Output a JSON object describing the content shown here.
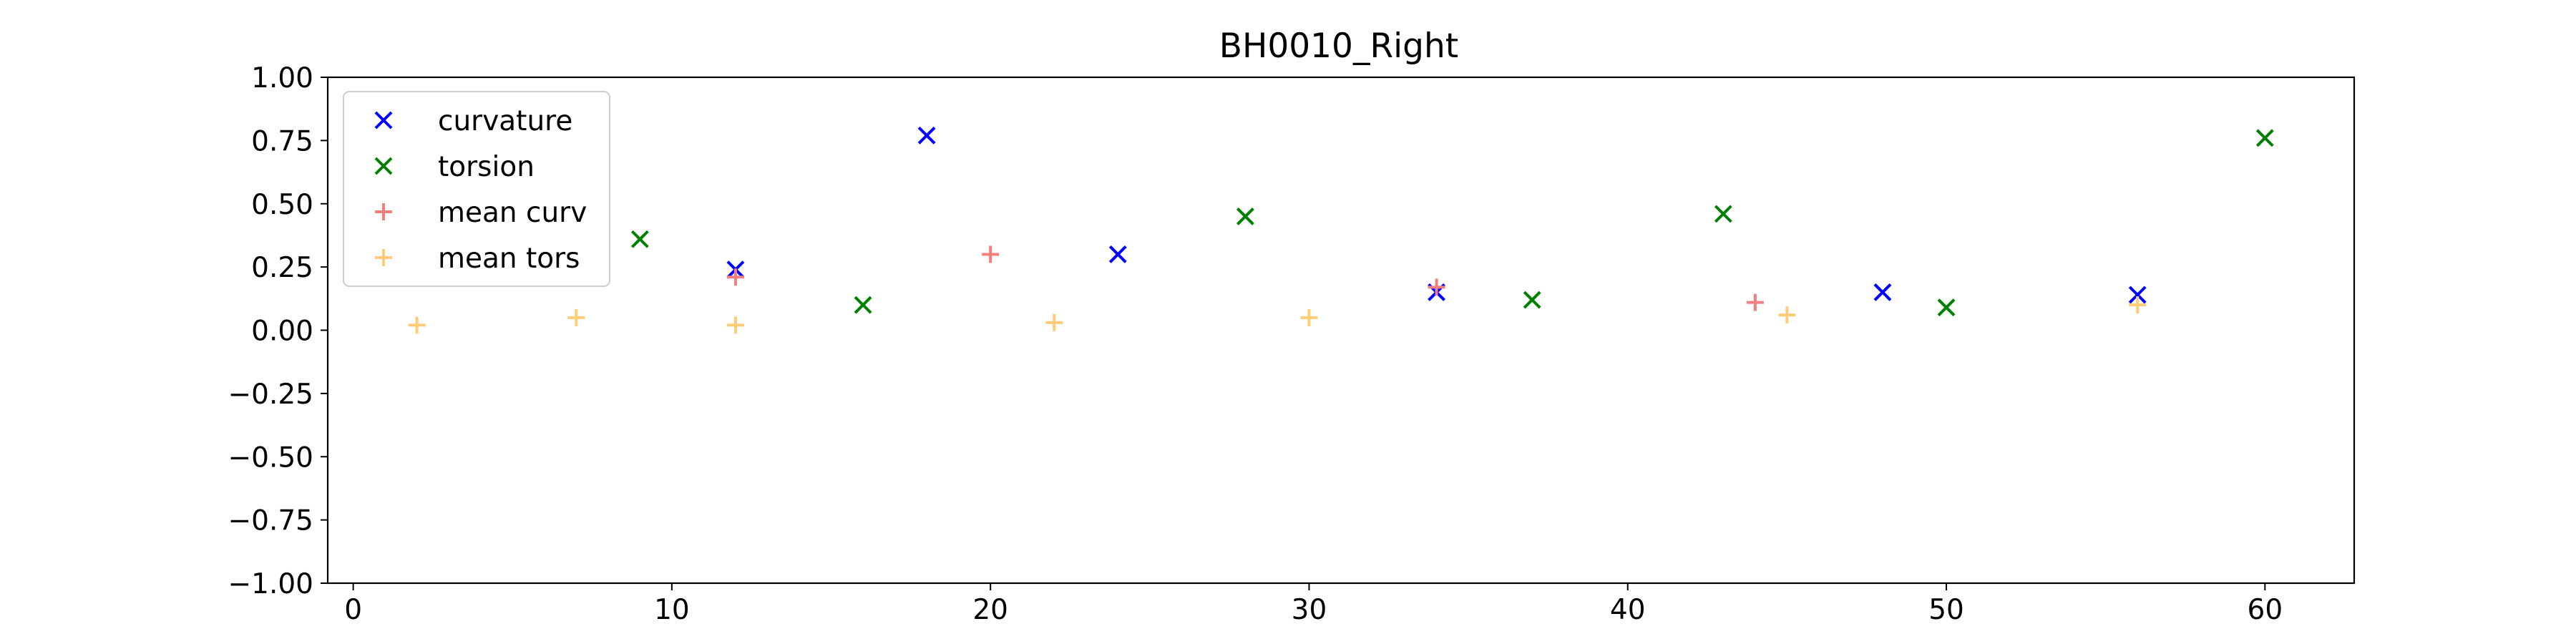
{
  "chart_data": {
    "type": "scatter",
    "title": "BH0010_Right",
    "xlabel": "",
    "ylabel": "",
    "xlim": [
      -0.8,
      62.8
    ],
    "ylim": [
      -1.0,
      1.0
    ],
    "xticks": [
      0,
      10,
      20,
      30,
      40,
      50,
      60
    ],
    "yticks": [
      -1.0,
      -0.75,
      -0.5,
      -0.25,
      0.0,
      0.25,
      0.5,
      0.75,
      1.0
    ],
    "xtick_labels": [
      "0",
      "10",
      "20",
      "30",
      "40",
      "50",
      "60"
    ],
    "ytick_labels": [
      "−1.00",
      "−0.75",
      "−0.50",
      "−0.25",
      "0.00",
      "0.25",
      "0.50",
      "0.75",
      "1.00"
    ],
    "grid": false,
    "legend_position": "upper-left",
    "series": [
      {
        "name": "curvature",
        "marker": "x",
        "color": "#0000ff",
        "x": [
          12,
          18,
          24,
          34,
          48,
          56
        ],
        "y": [
          0.24,
          0.77,
          0.3,
          0.15,
          0.15,
          0.14
        ]
      },
      {
        "name": "torsion",
        "marker": "x",
        "color": "#008000",
        "x": [
          9,
          16,
          28,
          37,
          43,
          50,
          60
        ],
        "y": [
          0.36,
          0.1,
          0.45,
          0.12,
          0.46,
          0.09,
          0.76
        ]
      },
      {
        "name": "mean curv",
        "marker": "+",
        "color": "#f08080",
        "x": [
          12,
          20,
          34,
          44
        ],
        "y": [
          0.21,
          0.3,
          0.17,
          0.11
        ]
      },
      {
        "name": "mean tors",
        "marker": "+",
        "color": "#ffcc77",
        "x": [
          2,
          7,
          12,
          22,
          30,
          45,
          56
        ],
        "y": [
          0.02,
          0.05,
          0.02,
          0.03,
          0.05,
          0.06,
          0.1
        ]
      }
    ]
  }
}
